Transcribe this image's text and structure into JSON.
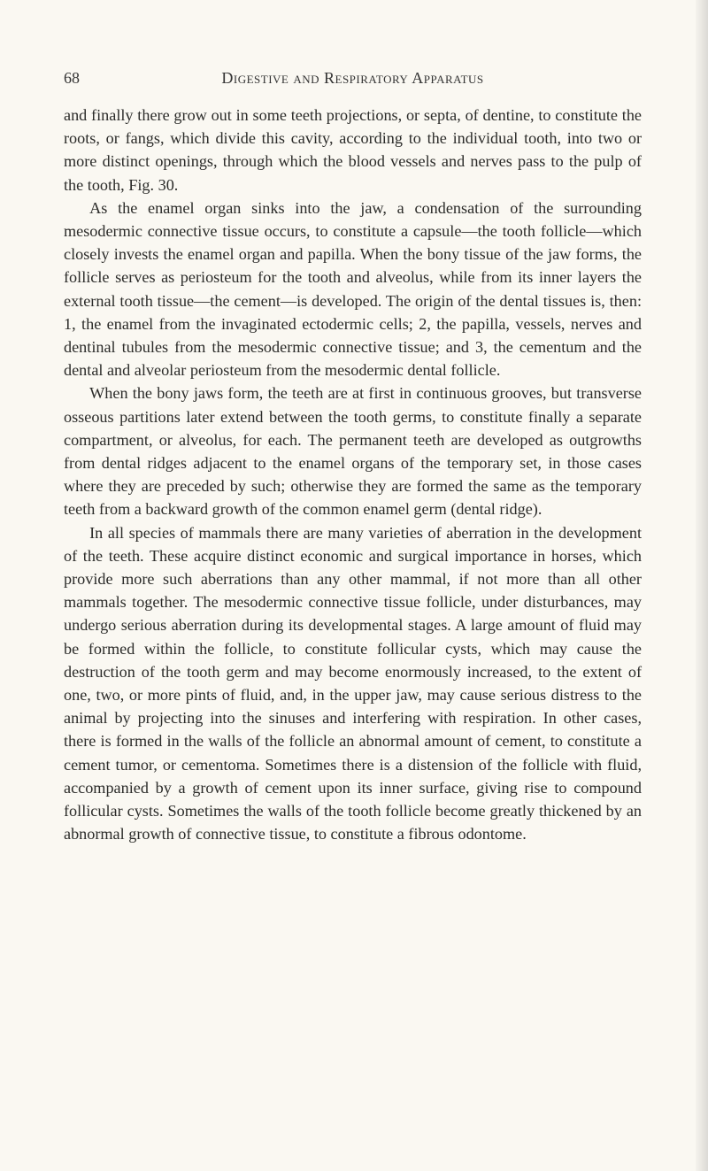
{
  "page": {
    "number": "68",
    "runningHead": "Digestive and Respiratory Apparatus"
  },
  "paragraphs": [
    "and finally there grow out in some teeth projections, or septa, of dentine, to constitute the roots, or fangs, which divide this cavity, according to the individual tooth, into two or more distinct openings, through which the blood vessels and nerves pass to the pulp of the tooth, Fig. 30.",
    "As the enamel organ sinks into the jaw, a condensation of the surrounding mesodermic connective tissue occurs, to constitute a capsule—the tooth follicle—which closely invests the enamel organ and papilla. When the bony tissue of the jaw forms, the follicle serves as periosteum for the tooth and alveolus, while from its inner layers the external tooth tissue—the cement—is developed. The origin of the dental tissues is, then: 1, the enamel from the invaginated ectodermic cells; 2, the papilla, vessels, nerves and dentinal tubules from the mesodermic connective tissue; and 3, the cementum and the dental and alveolar periosteum from the mesodermic dental follicle.",
    "When the bony jaws form, the teeth are at first in continuous grooves, but transverse osseous partitions later extend between the tooth germs, to constitute finally a separate compartment, or alveolus, for each. The permanent teeth are developed as outgrowths from dental ridges adjacent to the enamel organs of the temporary set, in those cases where they are preceded by such; otherwise they are formed the same as the temporary teeth from a backward growth of the common enamel germ (dental ridge).",
    "In all species of mammals there are many varieties of aberration in the development of the teeth. These acquire distinct economic and surgical importance in horses, which provide more such aberrations than any other mammal, if not more than all other mammals together. The mesodermic connective tissue follicle, under disturbances, may undergo serious aberration during its developmental stages. A large amount of fluid may be formed within the follicle, to constitute follicular cysts, which may cause the destruction of the tooth germ and may become enormously increased, to the extent of one, two, or more pints of fluid, and, in the upper jaw, may cause serious distress to the animal by projecting into the sinuses and interfering with respiration. In other cases, there is formed in the walls of the follicle an abnormal amount of cement, to constitute a cement tumor, or cementoma. Sometimes there is a distension of the follicle with fluid, accompanied by a growth of cement upon its inner surface, giving rise to compound follicular cysts. Sometimes the walls of the tooth follicle become greatly thickened by an abnormal growth of connective tissue, to constitute a fibrous odontome."
  ]
}
